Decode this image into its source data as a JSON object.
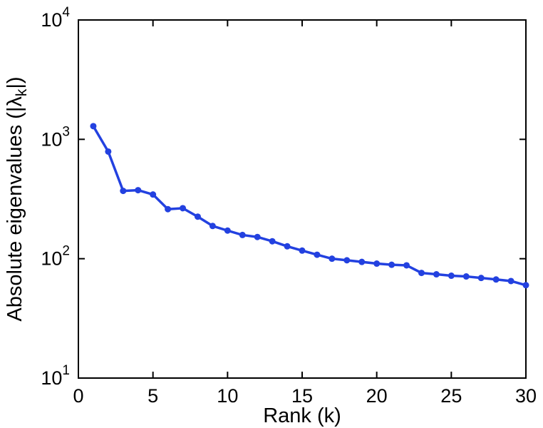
{
  "chart_data": {
    "type": "line",
    "title": "",
    "xlabel": "Rank (k)",
    "ylabel": "Absolute eigenvalues (|λ_k|)",
    "ylabel_parts": {
      "pre": "Absolute eigenvalues (|λ",
      "sub": "k",
      "post": "|)"
    },
    "x": [
      1,
      2,
      3,
      4,
      5,
      6,
      7,
      8,
      9,
      10,
      11,
      12,
      13,
      14,
      15,
      16,
      17,
      18,
      19,
      20,
      21,
      22,
      23,
      24,
      25,
      26,
      27,
      28,
      29,
      30
    ],
    "y": [
      1290,
      790,
      370,
      375,
      345,
      260,
      265,
      225,
      188,
      172,
      158,
      152,
      140,
      127,
      117,
      108,
      100,
      97,
      94,
      91,
      89,
      88,
      76,
      74,
      72,
      71,
      69,
      67,
      65,
      60
    ],
    "xlim": [
      0,
      30
    ],
    "yscale": "log",
    "ylog_lim": [
      1,
      4
    ],
    "xticks": [
      0,
      5,
      10,
      15,
      20,
      25,
      30
    ],
    "yticks_exp": [
      1,
      2,
      3,
      4
    ],
    "ytick_base": "10",
    "grid": false,
    "legend": null,
    "line_color": "#2341e0",
    "axis_color": "#000000",
    "marker": "circle",
    "line_width": 3.5,
    "marker_radius": 4.5
  }
}
